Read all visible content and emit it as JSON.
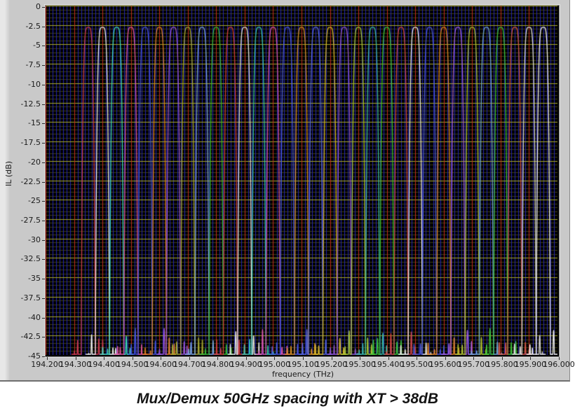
{
  "caption": "Mux/Demux 50GHz spacing with XT > 38dB",
  "panel": {
    "background": "#c9c9c9",
    "border": "#6f6f6f"
  },
  "chart_data": {
    "type": "line",
    "title": "Mux/Demux 50GHz spacing with XT > 38dB",
    "xlabel": "frequency (THz)",
    "ylabel": "IL (dB)",
    "xlim": [
      194.2,
      196.0
    ],
    "ylim": [
      -45,
      0
    ],
    "x_tick_labels": [
      "194.200",
      "194.300",
      "194.400",
      "194.500",
      "194.600",
      "194.700",
      "194.800",
      "194.900",
      "195.000",
      "195.100",
      "195.200",
      "195.300",
      "195.400",
      "195.500",
      "195.600",
      "195.700",
      "195.800",
      "195.900",
      "196.000"
    ],
    "y_tick_labels": [
      "0",
      "-2.5",
      "-5",
      "-7.5",
      "-10",
      "-12.5",
      "-15",
      "-17.5",
      "-20",
      "-22.5",
      "-25",
      "-27.5",
      "-30",
      "-32.5",
      "-35",
      "-37.5",
      "-40",
      "-42.5",
      "-45"
    ],
    "x_major_step": 0.1,
    "x_minor_step": 0.0125,
    "y_major_step": 2.5,
    "y_minor_step": 0.5,
    "grid": {
      "background": "#000000",
      "minor_h_color": "#3e3e10",
      "major_h_color": "#a8a82a",
      "minor_v_color": "#2424b0",
      "major_v_color": "#c22820",
      "grid_on": true,
      "legend": "none"
    },
    "channel_spacing_ghz": 50,
    "n_channels": 33,
    "floor_db": -45,
    "peak_db": -2.8,
    "passband": {
      "rolloff_exponent": 4.5,
      "half_width_thz": 0.0246,
      "edge_atten_db": 39.5
    },
    "sidelobe_db_range": [
      -44.5,
      -41.3
    ],
    "channels": [
      {
        "f": 194.35,
        "color": "#cc3a50",
        "peak_db": -2.8
      },
      {
        "f": 194.4,
        "color": "#ececec",
        "peak_db": -2.8
      },
      {
        "f": 194.45,
        "color": "#3dd9c4",
        "peak_db": -2.8
      },
      {
        "f": 194.5,
        "color": "#e0559e",
        "peak_db": -2.8
      },
      {
        "f": 194.55,
        "color": "#4553d6",
        "peak_db": -2.8
      },
      {
        "f": 194.6,
        "color": "#e07f22",
        "peak_db": -2.8
      },
      {
        "f": 194.65,
        "color": "#9a55d8",
        "peak_db": -2.8
      },
      {
        "f": 194.7,
        "color": "#a8a832",
        "peak_db": -2.8
      },
      {
        "f": 194.75,
        "color": "#7aa6e0",
        "peak_db": -2.8
      },
      {
        "f": 194.8,
        "color": "#36b836",
        "peak_db": -2.8
      },
      {
        "f": 194.85,
        "color": "#d03c3c",
        "peak_db": -2.8
      },
      {
        "f": 194.9,
        "color": "#e4e4e4",
        "peak_db": -2.8
      },
      {
        "f": 194.95,
        "color": "#35c6b2",
        "peak_db": -2.8
      },
      {
        "f": 195.0,
        "color": "#d655b2",
        "peak_db": -2.8
      },
      {
        "f": 195.05,
        "color": "#4858da",
        "peak_db": -2.8
      },
      {
        "f": 195.1,
        "color": "#d88e24",
        "peak_db": -2.8
      },
      {
        "f": 195.15,
        "color": "#5566e2",
        "peak_db": -2.8
      },
      {
        "f": 195.2,
        "color": "#d6b62a",
        "peak_db": -2.8
      },
      {
        "f": 195.25,
        "color": "#9054d2",
        "peak_db": -2.8
      },
      {
        "f": 195.3,
        "color": "#a6c636",
        "peak_db": -2.8
      },
      {
        "f": 195.35,
        "color": "#38b8a8",
        "peak_db": -2.8
      },
      {
        "f": 195.4,
        "color": "#3ac43a",
        "peak_db": -2.8
      },
      {
        "f": 195.45,
        "color": "#d04545",
        "peak_db": -2.8
      },
      {
        "f": 195.5,
        "color": "#ececec",
        "peak_db": -2.8
      },
      {
        "f": 195.55,
        "color": "#4856d8",
        "peak_db": -2.8
      },
      {
        "f": 195.6,
        "color": "#e08426",
        "peak_db": -2.8
      },
      {
        "f": 195.65,
        "color": "#a05ede",
        "peak_db": -2.8
      },
      {
        "f": 195.7,
        "color": "#b2c434",
        "peak_db": -2.8
      },
      {
        "f": 195.75,
        "color": "#6ea6d6",
        "peak_db": -2.8
      },
      {
        "f": 195.8,
        "color": "#3cc23c",
        "peak_db": -2.8
      },
      {
        "f": 195.85,
        "color": "#d25648",
        "peak_db": -2.8
      },
      {
        "f": 195.9,
        "color": "#dcdcdc",
        "peak_db": -2.8
      },
      {
        "f": 195.95,
        "color": "#f2f2f2",
        "peak_db": -2.8
      }
    ]
  }
}
